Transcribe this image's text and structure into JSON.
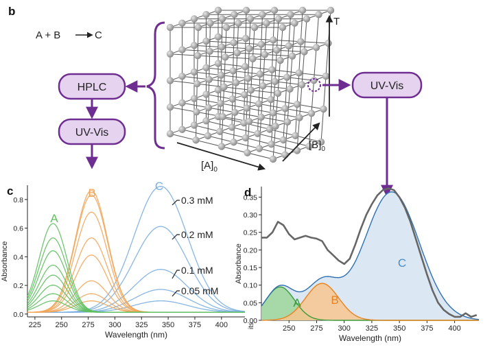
{
  "panel_b": {
    "label": "b",
    "reaction": "A + B",
    "product": "C",
    "hplc": "HPLC",
    "uv_vis_left": "UV-Vis",
    "uv_vis_right": "UV-Vis",
    "axis_a": "[A]",
    "axis_a_sub": "0",
    "axis_b": "[B]",
    "axis_b_sub": "0",
    "axis_t": "T",
    "colors": {
      "purple": "#6e2d91",
      "box_fill": "#e6d3ef",
      "sphere": "#a9a9a9"
    }
  },
  "panel_c": {
    "label": "c",
    "peak_a": "A",
    "peak_b": "B",
    "peak_c": "C",
    "conc_labels": [
      "0.3 mM",
      "0.2 mM",
      "0.1 mM",
      "0.05 mM"
    ],
    "colors": {
      "A": "#5fbf5f",
      "B": "#f2a65a",
      "C": "#7aaee0"
    }
  },
  "panel_d": {
    "label": "d",
    "peak_a": "A",
    "peak_b": "B",
    "peak_c": "C",
    "clipped_left_label": "its",
    "colors": {
      "A": "#3a9a3a",
      "B": "#e8821e",
      "C": "#2e6fb0",
      "measured": "#666666",
      "fill_C": "#dbe8f4",
      "fill_A": "#9ed59a",
      "fill_B": "#f7c58e"
    }
  },
  "chart_data": [
    {
      "type": "line",
      "panel": "c",
      "xlabel": "Wavelength (nm)",
      "ylabel": "Absorbance",
      "xlim": [
        218,
        422
      ],
      "ylim": [
        -0.02,
        0.9
      ],
      "x_ticks": [
        225,
        250,
        275,
        300,
        325,
        350,
        375,
        400
      ],
      "y_ticks": [
        0.0,
        0.2,
        0.4,
        0.6,
        0.8
      ],
      "series": [
        {
          "name": "A",
          "peak_x": 242,
          "width": 13,
          "peaks": [
            0.62,
            0.52,
            0.43,
            0.33,
            0.26,
            0.19,
            0.13,
            0.08
          ]
        },
        {
          "name": "B",
          "peak_x": 278,
          "width": 15,
          "peaks": [
            0.85,
            0.82,
            0.7,
            0.52,
            0.4,
            0.22,
            0.13,
            0.08
          ]
        },
        {
          "name": "C",
          "peak_x": 343,
          "width": 25,
          "peaks": [
            0.88,
            0.6,
            0.3,
            0.16,
            0.08
          ]
        }
      ]
    },
    {
      "type": "line",
      "panel": "d",
      "xlabel": "Wavelength (nm)",
      "ylabel": "Absorbance",
      "xlim": [
        225,
        422
      ],
      "ylim": [
        0,
        0.38
      ],
      "x_ticks": [
        250,
        275,
        300,
        325,
        350,
        375,
        400
      ],
      "y_ticks": [
        0.0,
        0.05,
        0.1,
        0.15,
        0.2,
        0.25,
        0.3,
        0.35
      ],
      "series": [
        {
          "name": "A",
          "peak_x": 242,
          "width": 13,
          "peak": 0.095
        },
        {
          "name": "B",
          "peak_x": 280,
          "width": 15,
          "peak": 0.105
        },
        {
          "name": "C",
          "peak_x": 343,
          "width": 25,
          "peak": 0.365
        }
      ],
      "measured": {
        "x": [
          225,
          230,
          235,
          240,
          245,
          250,
          255,
          260,
          265,
          270,
          275,
          280,
          285,
          290,
          295,
          300,
          305,
          310,
          315,
          320,
          325,
          330,
          335,
          340,
          345,
          350,
          355,
          360,
          365,
          370,
          375,
          380,
          385,
          390,
          395,
          400,
          405,
          410,
          415,
          420
        ],
        "y": [
          0.235,
          0.235,
          0.25,
          0.28,
          0.27,
          0.245,
          0.23,
          0.235,
          0.24,
          0.235,
          0.232,
          0.225,
          0.2,
          0.185,
          0.17,
          0.16,
          0.175,
          0.215,
          0.26,
          0.3,
          0.33,
          0.355,
          0.37,
          0.375,
          0.37,
          0.35,
          0.32,
          0.28,
          0.23,
          0.18,
          0.13,
          0.085,
          0.05,
          0.03,
          0.018,
          0.01,
          0.01,
          0.02,
          0.01,
          0.015
        ]
      }
    }
  ]
}
